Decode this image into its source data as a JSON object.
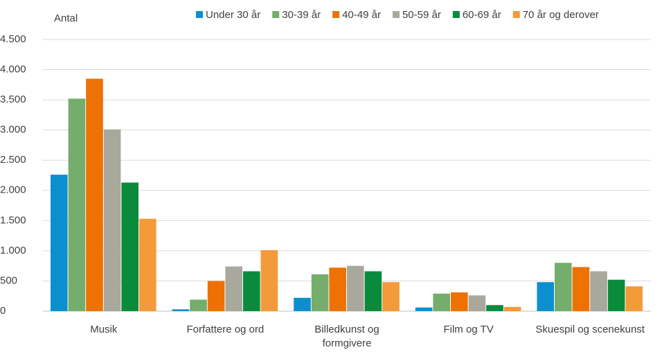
{
  "chart_data": {
    "type": "bar",
    "y_label": "Antal",
    "categories": [
      "Musik",
      "Forfattere og ord",
      "Billedkunst og formgivere",
      "Film og TV",
      "Skuespil og scenekunst"
    ],
    "series": [
      {
        "name": "Under 30 år",
        "color": "#0c8fce",
        "values": [
          2260,
          30,
          220,
          60,
          480
        ]
      },
      {
        "name": "30-39 år",
        "color": "#74ad6c",
        "values": [
          3520,
          190,
          610,
          290,
          800
        ]
      },
      {
        "name": "40-49 år",
        "color": "#ed7203",
        "values": [
          3850,
          500,
          720,
          310,
          730
        ]
      },
      {
        "name": "50-59 år",
        "color": "#a8a89c",
        "values": [
          3010,
          740,
          750,
          260,
          660
        ]
      },
      {
        "name": "60-69 år",
        "color": "#0a8b3c",
        "values": [
          2130,
          660,
          660,
          100,
          520
        ]
      },
      {
        "name": "70 år og derover",
        "color": "#f39a3a",
        "values": [
          1530,
          1010,
          480,
          70,
          410
        ]
      }
    ],
    "ylim": [
      0,
      4500
    ],
    "yticks": [
      0,
      500,
      {
        "value": 1000,
        "label": "1.000"
      },
      {
        "value": 1500,
        "label": "1.500"
      },
      {
        "value": 2000,
        "label": "2.000"
      },
      {
        "value": 2500,
        "label": "2.500"
      },
      {
        "value": 3000,
        "label": "3.000"
      },
      {
        "value": 3500,
        "label": "3.500"
      },
      {
        "value": 4000,
        "label": "4.000"
      },
      {
        "value": 4500,
        "label": "4.500"
      }
    ],
    "grid": true,
    "legend": "top"
  }
}
